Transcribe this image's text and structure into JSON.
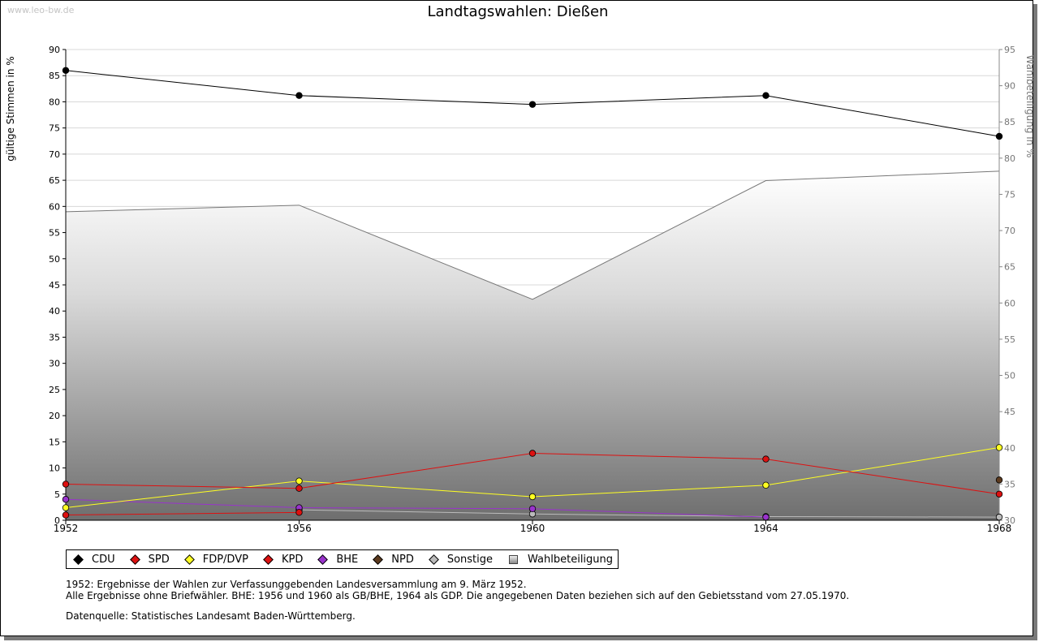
{
  "watermark": "www.leo-bw.de",
  "chart_data": {
    "type": "line",
    "title": "Landtagswahlen: Dießen",
    "ylabel": "gültige Stimmen in %",
    "y2label": "Wahlbeteiligung in %",
    "ylim": [
      0,
      90
    ],
    "y2lim": [
      30,
      95
    ],
    "yticks": [
      0,
      5,
      10,
      15,
      20,
      25,
      30,
      35,
      40,
      45,
      50,
      55,
      60,
      65,
      70,
      75,
      80,
      85,
      90
    ],
    "y2ticks": [
      30,
      35,
      40,
      45,
      50,
      55,
      60,
      65,
      70,
      75,
      80,
      85,
      90,
      95
    ],
    "x": [
      1952,
      1956,
      1960,
      1964,
      1968
    ],
    "turnout": {
      "name": "Wahlbeteiligung",
      "color": "#777777",
      "values": [
        72.6,
        73.5,
        60.5,
        76.9,
        78.2
      ]
    },
    "series": [
      {
        "name": "CDU",
        "color": "#000000",
        "values": [
          86.0,
          81.2,
          79.5,
          81.2,
          73.4
        ]
      },
      {
        "name": "SPD",
        "color": "#dd1111",
        "values": [
          6.9,
          6.1,
          12.8,
          11.7,
          5.0
        ]
      },
      {
        "name": "FDP/DVP",
        "color": "#ffff22",
        "values": [
          2.4,
          7.5,
          4.5,
          6.7,
          13.9
        ]
      },
      {
        "name": "KPD",
        "color": "#dd1111",
        "values": [
          1.0,
          1.5,
          null,
          null,
          null
        ]
      },
      {
        "name": "BHE",
        "color": "#9933cc",
        "values": [
          4.0,
          2.4,
          2.2,
          0.6,
          null
        ]
      },
      {
        "name": "NPD",
        "color": "#5c3a1e",
        "values": [
          null,
          null,
          null,
          null,
          7.7
        ]
      },
      {
        "name": "Sonstige",
        "color": "#bbbbbb",
        "values": [
          null,
          2.0,
          1.2,
          0.7,
          0.6
        ]
      }
    ]
  },
  "legend": [
    "CDU",
    "SPD",
    "FDP/DVP",
    "KPD",
    "BHE",
    "NPD",
    "Sonstige",
    "Wahlbeteiligung"
  ],
  "notes": {
    "line1": "1952: Ergebnisse der Wahlen zur Verfassunggebenden Landesversammlung am 9. März 1952.",
    "line2": "Alle Ergebnisse ohne Briefwähler. BHE: 1956 und 1960 als GB/BHE, 1964 als GDP. Die angegebenen Daten beziehen sich auf den Gebietsstand vom 27.05.1970.",
    "source": "Datenquelle: Statistisches Landesamt Baden-Württemberg."
  }
}
